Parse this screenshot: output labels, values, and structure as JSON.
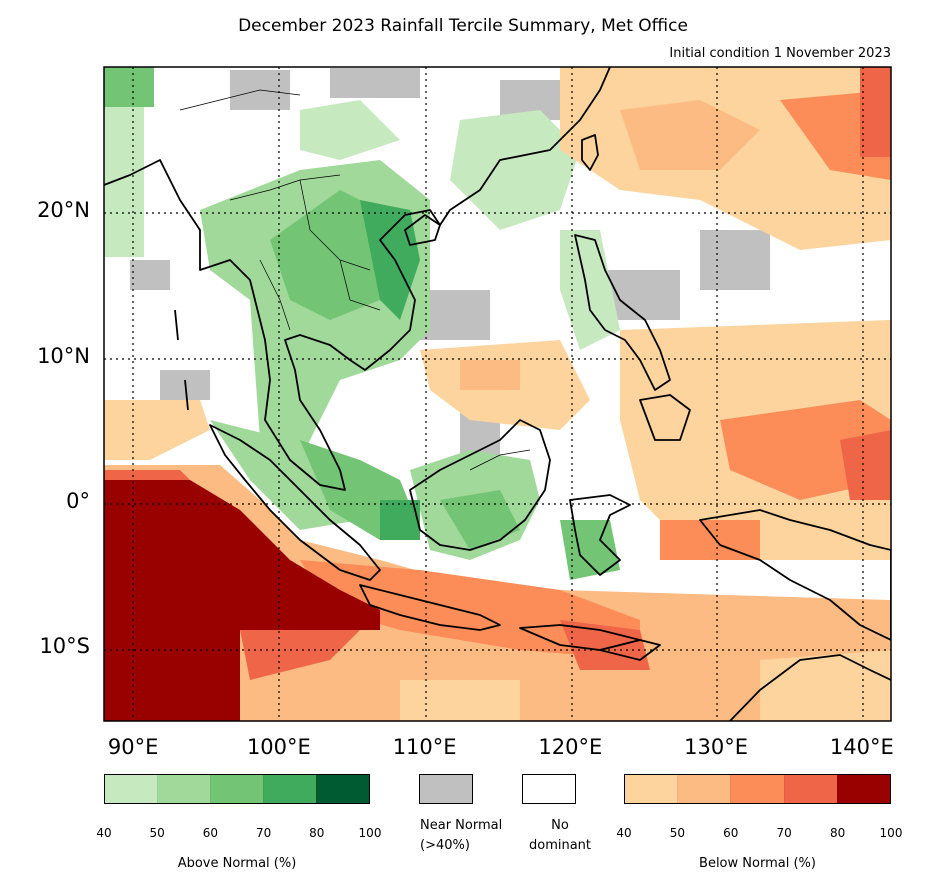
{
  "title": "December 2023 Rainfall Tercile Summary, Met Office",
  "subtitle": "Initial condition 1 November 2023",
  "map": {
    "lon_range": [
      88,
      142
    ],
    "lat_range": [
      -15,
      30
    ],
    "lat_labels": [
      {
        "lat": 20,
        "text": "20°N"
      },
      {
        "lat": 10,
        "text": "10°N"
      },
      {
        "lat": 0,
        "text": "0°"
      },
      {
        "lat": -10,
        "text": "10°S"
      }
    ],
    "lon_labels": [
      {
        "lon": 90,
        "text": "90°E"
      },
      {
        "lon": 100,
        "text": "100°E"
      },
      {
        "lon": 110,
        "text": "110°E"
      },
      {
        "lon": 120,
        "text": "120°E"
      },
      {
        "lon": 130,
        "text": "130°E"
      },
      {
        "lon": 140,
        "text": "140°E"
      }
    ]
  },
  "legend": {
    "above": {
      "caption": "Above Normal (%)",
      "colors": [
        "#c7e9c0",
        "#a1d99b",
        "#74c476",
        "#41ab5d",
        "#005a32"
      ],
      "ticks": [
        "40",
        "50",
        "60",
        "70",
        "80",
        "100"
      ]
    },
    "near_normal": {
      "caption_line1": "Near Normal",
      "caption_line2": "(>40%)",
      "color": "#c0c0c0"
    },
    "no_dominant": {
      "caption_line1": "No",
      "caption_line2": "dominant",
      "color": "#ffffff"
    },
    "below": {
      "caption": "Below Normal (%)",
      "colors": [
        "#fdd49e",
        "#fdbb84",
        "#fc8d59",
        "#ef6548",
        "#990000"
      ],
      "ticks": [
        "40",
        "50",
        "60",
        "70",
        "80",
        "100"
      ]
    }
  }
}
